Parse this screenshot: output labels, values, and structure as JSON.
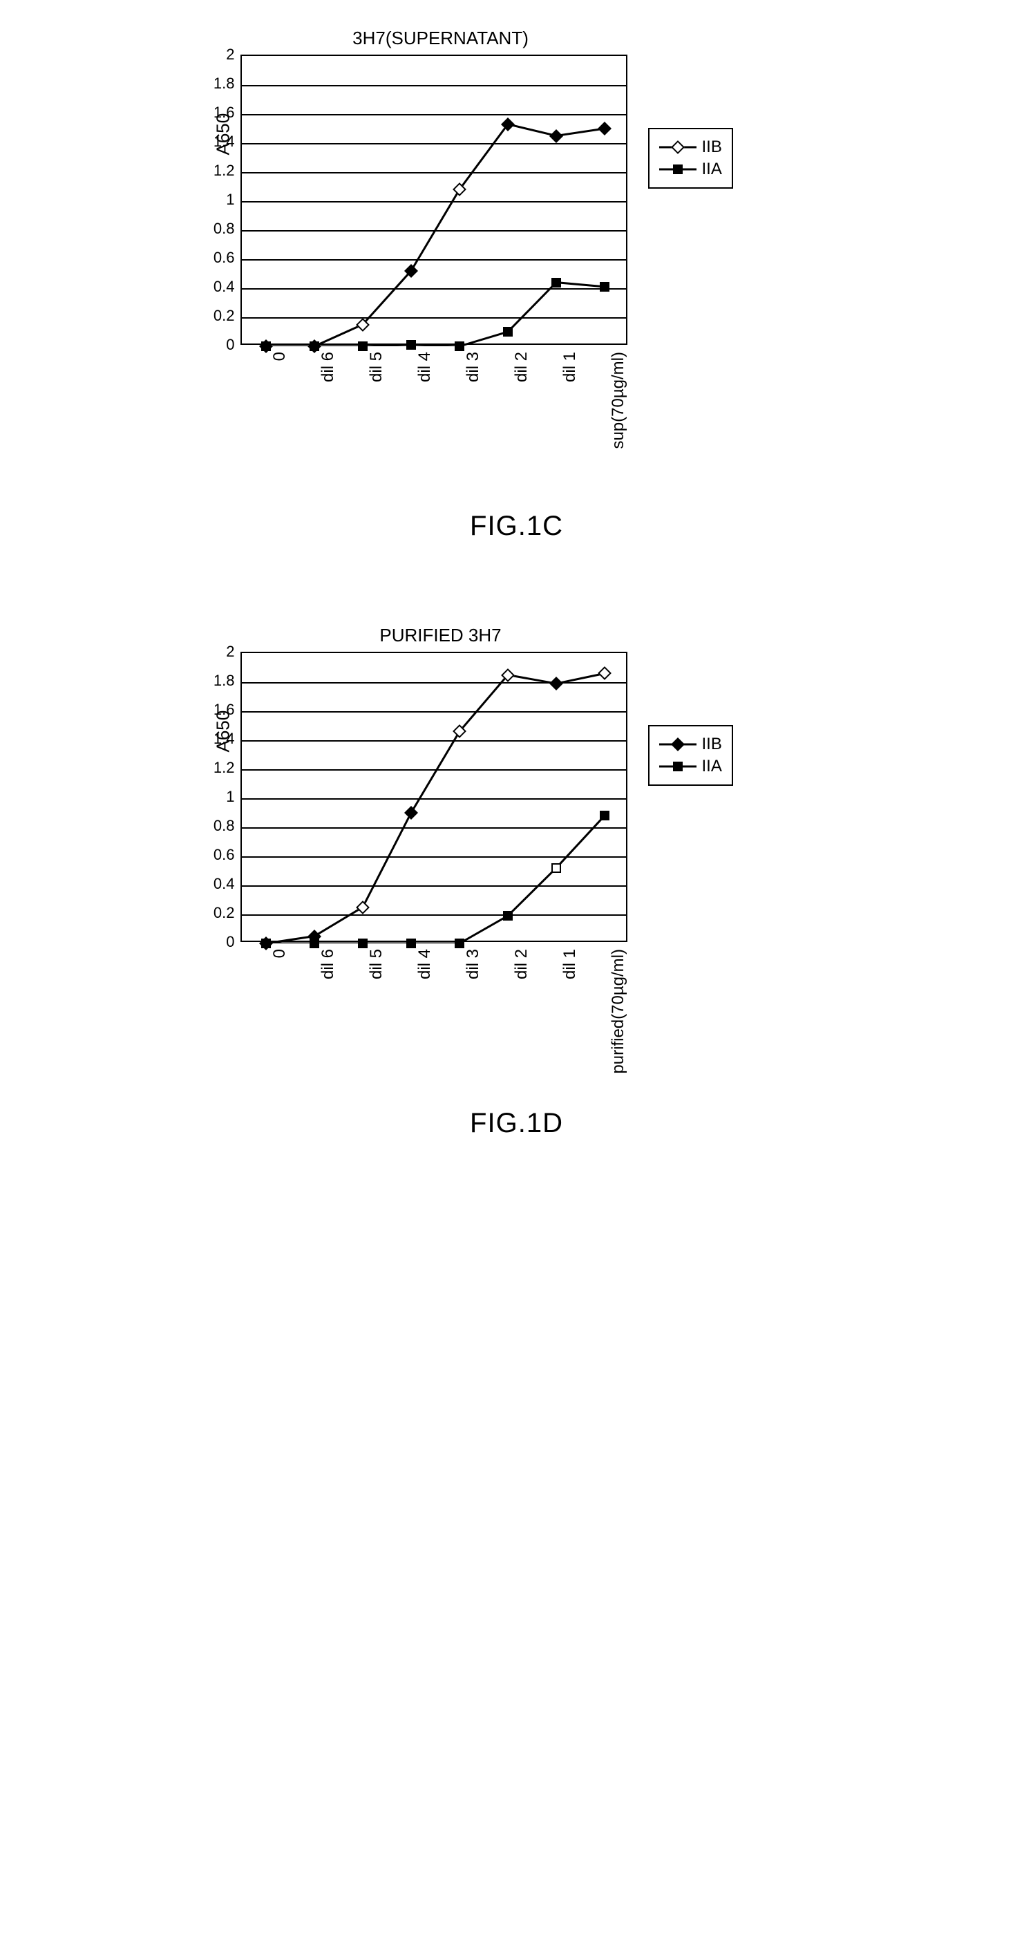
{
  "colors": {
    "line": "#000000",
    "grid": "#000000",
    "background": "#ffffff",
    "marker_fill": "#000000",
    "marker_open": "#ffffff"
  },
  "typography": {
    "title_fontsize": 26,
    "axis_fontsize": 22,
    "caption_fontsize": 40,
    "legend_fontsize": 24
  },
  "chart1": {
    "type": "line",
    "title": "3H7(SUPERNATANT)",
    "ylabel": "A650",
    "caption": "FIG.1C",
    "ylim": [
      0,
      2
    ],
    "ytick_step": 0.2,
    "yticks": [
      "0",
      "0.2",
      "0.4",
      "0.6",
      "0.8",
      "1",
      "1.2",
      "1.4",
      "1.6",
      "1.8",
      "2"
    ],
    "categories": [
      "0",
      "dil 6",
      "dil 5",
      "dil 4",
      "dil 3",
      "dil 2",
      "dil 1",
      "sup(70µg/ml)"
    ],
    "line_width": 3,
    "marker_size": 14,
    "series": [
      {
        "name": "IIB",
        "marker": "diamond",
        "marker_fill": "mixed",
        "fills": [
          true,
          true,
          false,
          true,
          false,
          true,
          true,
          true
        ],
        "values": [
          0.0,
          0.0,
          0.15,
          0.52,
          1.08,
          1.53,
          1.45,
          1.5
        ]
      },
      {
        "name": "IIA",
        "marker": "square",
        "marker_fill": "solid",
        "fills": [
          true,
          true,
          true,
          true,
          true,
          true,
          true,
          true
        ],
        "values": [
          0.0,
          0.0,
          0.0,
          0.01,
          0.0,
          0.1,
          0.44,
          0.41
        ]
      }
    ],
    "legend": [
      {
        "marker": "diamond",
        "fill": "open",
        "label": "IIB"
      },
      {
        "marker": "square",
        "fill": "solid",
        "label": "IIA"
      }
    ]
  },
  "chart2": {
    "type": "line",
    "title": "PURIFIED 3H7",
    "ylabel": "A650",
    "caption": "FIG.1D",
    "ylim": [
      0,
      2
    ],
    "ytick_step": 0.2,
    "yticks": [
      "0",
      "0.2",
      "0.4",
      "0.6",
      "0.8",
      "1",
      "1.2",
      "1.4",
      "1.6",
      "1.8",
      "2"
    ],
    "categories": [
      "0",
      "dil 6",
      "dil 5",
      "dil 4",
      "dil 3",
      "dil 2",
      "dil 1",
      "purified(70µg/ml)"
    ],
    "line_width": 3,
    "marker_size": 14,
    "series": [
      {
        "name": "IIB",
        "marker": "diamond",
        "marker_fill": "mixed",
        "fills": [
          true,
          true,
          false,
          true,
          false,
          false,
          true,
          false
        ],
        "values": [
          0.0,
          0.05,
          0.25,
          0.9,
          1.46,
          1.85,
          1.79,
          1.86
        ]
      },
      {
        "name": "IIA",
        "marker": "square",
        "marker_fill": "mixed",
        "fills": [
          true,
          true,
          true,
          true,
          true,
          true,
          false,
          true
        ],
        "values": [
          0.0,
          0.0,
          0.0,
          0.0,
          0.0,
          0.19,
          0.52,
          0.88
        ]
      }
    ],
    "legend": [
      {
        "marker": "diamond",
        "fill": "solid",
        "label": "IIB"
      },
      {
        "marker": "square",
        "fill": "solid",
        "label": "IIA"
      }
    ]
  }
}
